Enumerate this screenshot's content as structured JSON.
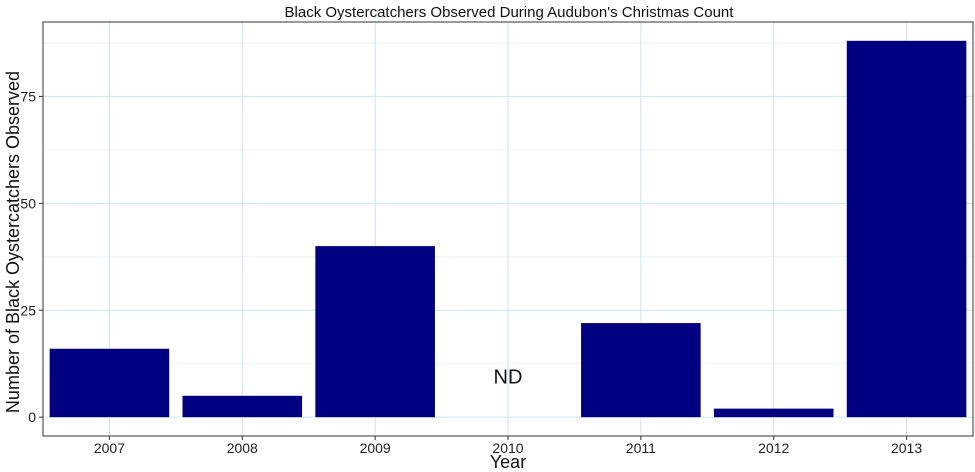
{
  "chart_data": {
    "type": "bar",
    "title": "Black Oystercatchers Observed During Audubon's Christmas Count",
    "xlabel": "Year",
    "ylabel": "Number of Black Oystercatchers Observed",
    "categories": [
      "2007",
      "2008",
      "2009",
      "2010",
      "2011",
      "2012",
      "2013"
    ],
    "values": [
      16,
      5,
      40,
      null,
      22,
      2,
      88
    ],
    "yticks": [
      0,
      25,
      50,
      75
    ],
    "ylim": [
      -4.4,
      92.4
    ],
    "grid": true,
    "bar_color": "#000080",
    "annotations": [
      {
        "category": "2010",
        "y": 9.5,
        "text": "ND"
      }
    ]
  }
}
